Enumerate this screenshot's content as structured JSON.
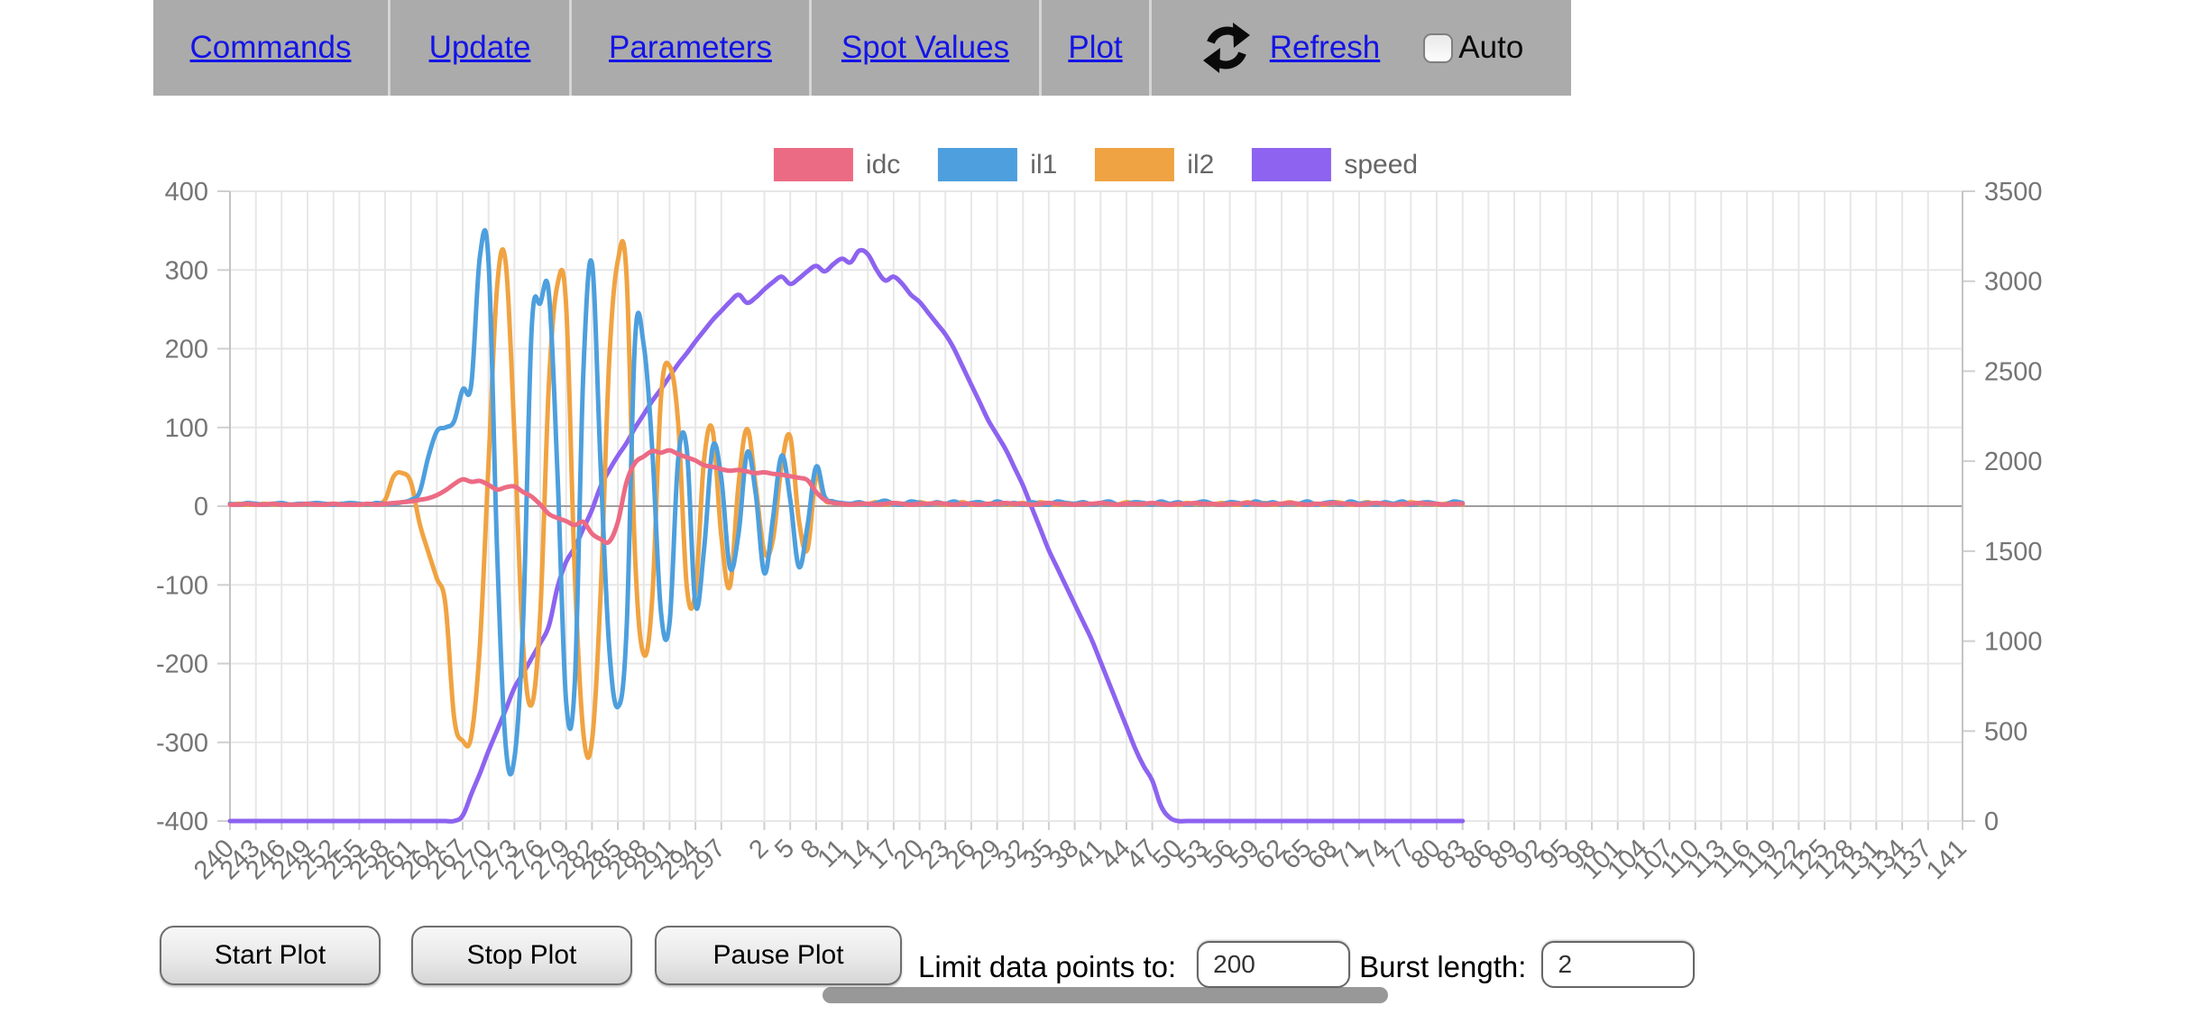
{
  "nav": {
    "items": [
      {
        "label": "Commands"
      },
      {
        "label": "Update"
      },
      {
        "label": "Parameters"
      },
      {
        "label": "Spot Values"
      },
      {
        "label": "Plot"
      }
    ],
    "refresh_label": "Refresh",
    "auto_label": "Auto",
    "auto_checked": false
  },
  "controls": {
    "start_label": "Start Plot",
    "stop_label": "Stop Plot",
    "pause_label": "Pause Plot",
    "limit_label": "Limit data points to:",
    "limit_value": "200",
    "burst_label": "Burst length:",
    "burst_value": "2"
  },
  "chart_data": {
    "type": "line",
    "title": "",
    "legend_position": "top",
    "grid": true,
    "x_axis": {
      "total_slots": 202,
      "tick_labels": [
        "240",
        "243",
        "246",
        "249",
        "252",
        "255",
        "258",
        "261",
        "264",
        "267",
        "270",
        "273",
        "276",
        "279",
        "282",
        "285",
        "288",
        "291",
        "294",
        "297",
        "2",
        "5",
        "8",
        "11",
        "14",
        "17",
        "20",
        "23",
        "26",
        "29",
        "32",
        "35",
        "38",
        "41",
        "44",
        "47",
        "50",
        "53",
        "56",
        "59",
        "62",
        "65",
        "68",
        "71",
        "74",
        "77",
        "80",
        "83",
        "86",
        "89",
        "92",
        "95",
        "98",
        "101",
        "104",
        "107",
        "110",
        "113",
        "116",
        "119",
        "122",
        "125",
        "128",
        "131",
        "134",
        "137",
        "141"
      ],
      "tick_slots": [
        0,
        3,
        6,
        9,
        12,
        15,
        18,
        21,
        24,
        27,
        30,
        33,
        36,
        39,
        42,
        45,
        48,
        51,
        54,
        57,
        62,
        65,
        68,
        71,
        74,
        77,
        80,
        83,
        86,
        89,
        92,
        95,
        98,
        101,
        104,
        107,
        110,
        113,
        116,
        119,
        122,
        125,
        128,
        131,
        134,
        137,
        140,
        143,
        146,
        149,
        152,
        155,
        158,
        161,
        164,
        167,
        170,
        173,
        176,
        179,
        182,
        185,
        188,
        191,
        194,
        197,
        201
      ]
    },
    "left_axis": {
      "min": -400,
      "max": 400,
      "step": 100,
      "tick_labels": [
        "400",
        "300",
        "200",
        "100",
        "0",
        "-100",
        "-200",
        "-300",
        "-400"
      ]
    },
    "right_axis": {
      "min": 0,
      "max": 3500,
      "step": 500,
      "tick_labels": [
        "3500",
        "3000",
        "2500",
        "2000",
        "1500",
        "1000",
        "500",
        "0"
      ]
    },
    "series": [
      {
        "name": "idc",
        "color": "#ec6b84",
        "axis": "left",
        "values": [
          2,
          2,
          3,
          2,
          2,
          3,
          2,
          2,
          2,
          3,
          2,
          2,
          3,
          2,
          2,
          2,
          3,
          2,
          3,
          4,
          5,
          6,
          8,
          10,
          14,
          20,
          28,
          34,
          31,
          32,
          27,
          21,
          24,
          25,
          18,
          12,
          2,
          -10,
          -15,
          -19,
          -24,
          -20,
          -35,
          -42,
          -45,
          -20,
          30,
          55,
          63,
          70,
          68,
          71,
          66,
          62,
          58,
          52,
          50,
          47,
          45,
          46,
          44,
          42,
          43,
          41,
          40,
          38,
          36,
          33,
          18,
          8,
          4,
          3,
          2,
          3,
          3,
          2,
          3,
          4,
          3,
          2,
          3,
          3,
          4,
          3,
          2,
          3,
          3,
          2,
          3,
          3,
          4,
          3,
          3,
          2,
          3,
          4,
          3,
          3,
          2,
          3,
          3,
          4,
          3,
          2,
          3,
          3,
          3,
          4,
          3,
          2,
          3,
          3,
          4,
          3,
          3,
          2,
          3,
          3,
          4,
          3,
          2,
          3,
          3,
          4,
          3,
          2,
          3,
          3,
          4,
          3,
          3,
          2,
          3,
          4,
          3,
          2,
          3,
          3,
          4,
          3,
          3,
          2,
          3,
          3
        ]
      },
      {
        "name": "il1",
        "color": "#4d9fdd",
        "axis": "left",
        "values": [
          3,
          2,
          4,
          3,
          2,
          3,
          4,
          2,
          3,
          3,
          4,
          3,
          2,
          3,
          4,
          3,
          2,
          4,
          3,
          3,
          5,
          8,
          18,
          62,
          95,
          100,
          108,
          148,
          155,
          318,
          310,
          -60,
          -305,
          -320,
          -150,
          225,
          258,
          270,
          40,
          -248,
          -225,
          170,
          308,
          50,
          -180,
          -255,
          -160,
          212,
          205,
          70,
          -135,
          -148,
          60,
          72,
          -125,
          -55,
          75,
          35,
          -78,
          -35,
          68,
          15,
          -85,
          -15,
          64,
          8,
          -77,
          -25,
          50,
          12,
          6,
          4,
          3,
          5,
          2,
          4,
          7,
          3,
          2,
          6,
          4,
          2,
          5,
          3,
          6,
          2,
          4,
          5,
          2,
          6,
          3,
          4,
          2,
          5,
          3,
          2,
          6,
          4,
          3,
          5,
          2,
          4,
          6,
          2,
          3,
          5,
          4,
          2,
          6,
          3,
          5,
          2,
          4,
          6,
          3,
          2,
          5,
          4,
          2,
          6,
          3,
          5,
          2,
          4,
          3,
          6,
          2,
          4,
          5,
          2,
          6,
          3,
          4,
          2,
          5,
          3,
          6,
          2,
          4,
          5,
          3,
          2,
          6,
          4
        ]
      },
      {
        "name": "il2",
        "color": "#f0a342",
        "axis": "left",
        "values": [
          2,
          3,
          2,
          2,
          3,
          2,
          3,
          2,
          2,
          3,
          2,
          2,
          3,
          2,
          3,
          2,
          2,
          3,
          8,
          38,
          42,
          30,
          -22,
          -58,
          -92,
          -125,
          -268,
          -298,
          -292,
          -175,
          55,
          280,
          308,
          90,
          -175,
          -252,
          -135,
          155,
          282,
          255,
          -85,
          -288,
          -298,
          -110,
          185,
          312,
          295,
          -65,
          -188,
          -115,
          138,
          178,
          105,
          -102,
          -108,
          58,
          96,
          -38,
          -102,
          28,
          98,
          25,
          -58,
          -42,
          52,
          88,
          -18,
          -55,
          38,
          8,
          5,
          3,
          2,
          4,
          3,
          5,
          2,
          4,
          3,
          2,
          5,
          3,
          4,
          2,
          3,
          5,
          2,
          4,
          3,
          5,
          2,
          3,
          4,
          2,
          5,
          3,
          2,
          4,
          3,
          5,
          2,
          4,
          3,
          2,
          5,
          3,
          4,
          2,
          5,
          3,
          2,
          4,
          3,
          5,
          2,
          4,
          3,
          2,
          5,
          3,
          4,
          2,
          3,
          5,
          2,
          4,
          3,
          2,
          5,
          4,
          2,
          3,
          5,
          2,
          4,
          3,
          2,
          5,
          3,
          4,
          2,
          3,
          5,
          2
        ]
      },
      {
        "name": "speed",
        "color": "#8d63f0",
        "axis": "right",
        "values": [
          0,
          0,
          0,
          0,
          0,
          0,
          0,
          0,
          0,
          0,
          0,
          0,
          0,
          0,
          0,
          0,
          0,
          0,
          0,
          0,
          0,
          0,
          0,
          0,
          0,
          0,
          0,
          30,
          150,
          265,
          390,
          505,
          620,
          740,
          820,
          905,
          990,
          1085,
          1300,
          1440,
          1520,
          1625,
          1730,
          1860,
          1950,
          2030,
          2100,
          2185,
          2260,
          2335,
          2400,
          2470,
          2540,
          2600,
          2665,
          2725,
          2785,
          2835,
          2885,
          2925,
          2880,
          2910,
          2955,
          2995,
          3025,
          2985,
          3015,
          3055,
          3085,
          3055,
          3095,
          3125,
          3105,
          3170,
          3150,
          3065,
          3005,
          3025,
          2985,
          2925,
          2885,
          2825,
          2765,
          2705,
          2625,
          2525,
          2425,
          2325,
          2225,
          2145,
          2065,
          1965,
          1865,
          1745,
          1625,
          1505,
          1405,
          1305,
          1205,
          1105,
          1005,
          885,
          765,
          645,
          525,
          405,
          305,
          225,
          85,
          20,
          0,
          0,
          0,
          0,
          0,
          0,
          0,
          0,
          0,
          0,
          0,
          0,
          0,
          0,
          0,
          0,
          0,
          0,
          0,
          0,
          0,
          0,
          0,
          0,
          0,
          0,
          0,
          0,
          0,
          0,
          0,
          0,
          0,
          0
        ]
      }
    ]
  }
}
